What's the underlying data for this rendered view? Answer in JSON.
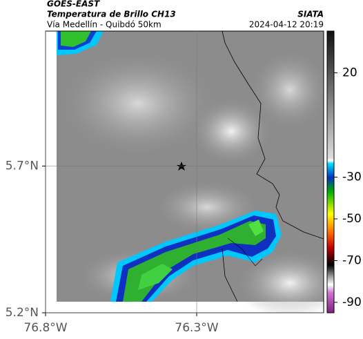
{
  "header": {
    "satellite": "GOES-EAST",
    "product": "Temperatura de Brillo CH13",
    "route": "Vía Medellín - Quibdó 50km",
    "source": "SIATA",
    "timestamp": "2024-04-12 20:19"
  },
  "chart_data": {
    "type": "map",
    "xlim": [
      -76.8,
      -75.88
    ],
    "ylim": [
      5.2,
      6.16
    ],
    "xticks": [
      {
        "value": -76.8,
        "label": "76.8°W"
      },
      {
        "value": -76.3,
        "label": "76.3°W"
      }
    ],
    "yticks": [
      {
        "value": 5.2,
        "label": "5.2°N"
      },
      {
        "value": 5.7,
        "label": "5.7°N"
      }
    ],
    "grid": true,
    "colorbar": {
      "clim": [
        -95,
        40
      ],
      "ticks": [
        20,
        -30,
        -50,
        -70,
        -90
      ]
    }
  }
}
